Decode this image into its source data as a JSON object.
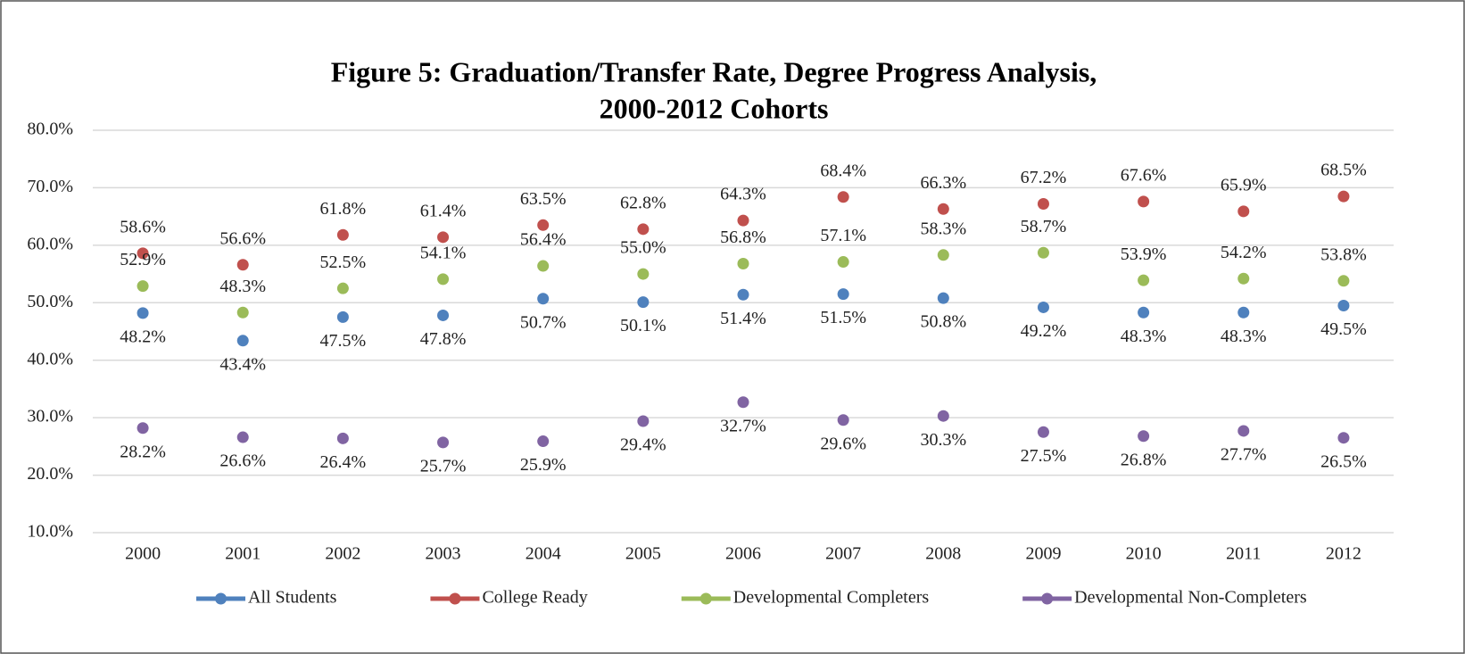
{
  "chart_data": {
    "type": "line",
    "title": [
      "Figure 5: Graduation/Transfer Rate, Degree Progress Analysis,",
      "2000-2012 Cohorts"
    ],
    "categories": [
      "2000",
      "2001",
      "2002",
      "2003",
      "2004",
      "2005",
      "2006",
      "2007",
      "2008",
      "2009",
      "2010",
      "2011",
      "2012"
    ],
    "ylim": [
      10,
      80
    ],
    "yticks": [
      {
        "value": 10,
        "label": "10.0%"
      },
      {
        "value": 20,
        "label": "20.0%"
      },
      {
        "value": 30,
        "label": "30.0%"
      },
      {
        "value": 40,
        "label": "40.0%"
      },
      {
        "value": 50,
        "label": "50.0%"
      },
      {
        "value": 60,
        "label": "60.0%"
      },
      {
        "value": 70,
        "label": "70.0%"
      },
      {
        "value": 80,
        "label": "80.0%"
      }
    ],
    "grid": true,
    "legend": "bottom",
    "series": [
      {
        "name": "All Students",
        "color": "#4f81bd",
        "values": [
          48.2,
          43.4,
          47.5,
          47.8,
          50.7,
          50.1,
          51.4,
          51.5,
          50.8,
          49.2,
          48.3,
          48.3,
          49.5
        ],
        "value_labels": [
          "48.2%",
          "43.4%",
          "47.5%",
          "47.8%",
          "50.7%",
          "50.1%",
          "51.4%",
          "51.5%",
          "50.8%",
          "49.2%",
          "48.3%",
          "48.3%",
          "49.5%"
        ]
      },
      {
        "name": "College Ready",
        "color": "#c0504d",
        "values": [
          58.6,
          56.6,
          61.8,
          61.4,
          63.5,
          62.8,
          64.3,
          68.4,
          66.3,
          67.2,
          67.6,
          65.9,
          68.5
        ],
        "value_labels": [
          "58.6%",
          "56.6%",
          "61.8%",
          "61.4%",
          "63.5%",
          "62.8%",
          "64.3%",
          "68.4%",
          "66.3%",
          "67.2%",
          "67.6%",
          "65.9%",
          "68.5%"
        ]
      },
      {
        "name": "Developmental Completers",
        "color": "#9bbb59",
        "values": [
          52.9,
          48.3,
          52.5,
          54.1,
          56.4,
          55.0,
          56.8,
          57.1,
          58.3,
          58.7,
          53.9,
          54.2,
          53.8
        ],
        "value_labels": [
          "52.9%",
          "48.3%",
          "52.5%",
          "54.1%",
          "56.4%",
          "55.0%",
          "56.8%",
          "57.1%",
          "58.3%",
          "58.7%",
          "53.9%",
          "54.2%",
          "53.8%"
        ]
      },
      {
        "name": "Developmental Non-Completers",
        "color": "#8064a2",
        "values": [
          28.2,
          26.6,
          26.4,
          25.7,
          25.9,
          29.4,
          32.7,
          29.6,
          30.3,
          27.5,
          26.8,
          27.7,
          26.5
        ],
        "value_labels": [
          "28.2%",
          "26.6%",
          "26.4%",
          "25.7%",
          "25.9%",
          "29.4%",
          "32.7%",
          "29.6%",
          "30.3%",
          "27.5%",
          "26.8%",
          "27.7%",
          "26.5%"
        ]
      }
    ]
  }
}
